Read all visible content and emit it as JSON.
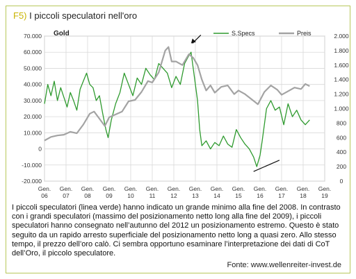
{
  "header": {
    "figure_label": "F5)",
    "title": "I piccoli speculatori nell'oro"
  },
  "colors": {
    "frame": "#b8c85a",
    "green_series": "#2e9a2e",
    "gray_series": "#a3a3a3",
    "arrow": "#111111",
    "figure_label": "#c9b400"
  },
  "chart_data": {
    "type": "line",
    "title": "Gold",
    "x_tick_labels": [
      [
        "Gen.",
        "06"
      ],
      [
        "Gen.",
        "07"
      ],
      [
        "Gen.",
        "08"
      ],
      [
        "Gen.",
        "09"
      ],
      [
        "Gen.",
        "10"
      ],
      [
        "Gen.",
        "11"
      ],
      [
        "Gen.",
        "12"
      ],
      [
        "Gen.",
        "13"
      ],
      [
        "Gen.",
        "14"
      ],
      [
        "Gen.",
        "15"
      ],
      [
        "Gen.",
        "16"
      ],
      [
        "Gen.",
        "17"
      ],
      [
        "Gen.",
        "18"
      ],
      [
        "Gen.",
        "19"
      ]
    ],
    "x_ticks": [
      2006,
      2007,
      2008,
      2009,
      2010,
      2011,
      2012,
      2013,
      2014,
      2015,
      2016,
      2017,
      2018,
      2019
    ],
    "xlim": [
      2006,
      2019
    ],
    "y_left": {
      "lim": [
        -20000,
        70000
      ],
      "ticks": [
        70000,
        60000,
        50000,
        40000,
        30000,
        20000,
        10000,
        0,
        -10000,
        -20000
      ],
      "tick_labels": [
        "70.000",
        "60.000",
        "50.000",
        "40.000",
        "30.000",
        "20.000",
        "10.000",
        "0",
        "-10.000",
        "-20.000"
      ]
    },
    "y_right": {
      "lim": [
        0,
        2000
      ],
      "ticks": [
        2000,
        1800,
        1600,
        1400,
        1200,
        1000,
        800,
        600,
        400,
        200,
        0
      ],
      "tick_labels": [
        "2.000",
        "1.800",
        "1.600",
        "1.400",
        "1.200",
        "1.000",
        "800",
        "600",
        "400",
        "200",
        "0"
      ]
    },
    "grid": true,
    "legend_position": "top-right",
    "series": [
      {
        "name": "S.Specs",
        "axis": "left",
        "color": "#2e9a2e",
        "x": [
          2006.0,
          2006.15,
          2006.3,
          2006.45,
          2006.6,
          2006.75,
          2006.9,
          2007.05,
          2007.2,
          2007.35,
          2007.5,
          2007.65,
          2007.8,
          2007.95,
          2008.1,
          2008.25,
          2008.4,
          2008.55,
          2008.7,
          2008.85,
          2008.95,
          2009.1,
          2009.3,
          2009.5,
          2009.7,
          2009.9,
          2010.1,
          2010.3,
          2010.5,
          2010.7,
          2010.9,
          2011.1,
          2011.3,
          2011.5,
          2011.7,
          2011.9,
          2012.1,
          2012.3,
          2012.5,
          2012.7,
          2012.8,
          2012.9,
          2013.0,
          2013.1,
          2013.2,
          2013.3,
          2013.5,
          2013.7,
          2013.9,
          2014.1,
          2014.3,
          2014.5,
          2014.7,
          2014.9,
          2015.1,
          2015.3,
          2015.5,
          2015.7,
          2015.85,
          2016.0,
          2016.1,
          2016.3,
          2016.5,
          2016.7,
          2016.9,
          2017.1,
          2017.3,
          2017.5,
          2017.7,
          2017.9,
          2018.1,
          2018.3
        ],
        "values": [
          28000,
          40000,
          33000,
          42000,
          30000,
          38000,
          32000,
          26000,
          35000,
          30000,
          24000,
          37000,
          42000,
          47000,
          40000,
          38000,
          30000,
          33000,
          22000,
          12000,
          7000,
          18000,
          28000,
          35000,
          47000,
          40000,
          33000,
          44000,
          40000,
          50000,
          46000,
          43000,
          53000,
          50000,
          47000,
          38000,
          45000,
          40000,
          53000,
          58000,
          60000,
          50000,
          40000,
          30000,
          12000,
          2000,
          5000,
          0,
          4000,
          2000,
          8000,
          3000,
          1000,
          12000,
          7000,
          3000,
          0,
          -5000,
          -11000,
          -4000,
          5000,
          25000,
          30000,
          24000,
          26000,
          15000,
          28000,
          20000,
          24000,
          18000,
          15000,
          18000
        ]
      },
      {
        "name": "Preis",
        "axis": "right",
        "color": "#a3a3a3",
        "x": [
          2006.0,
          2006.3,
          2006.6,
          2006.9,
          2007.2,
          2007.5,
          2007.8,
          2008.1,
          2008.3,
          2008.5,
          2008.8,
          2009.0,
          2009.3,
          2009.6,
          2009.9,
          2010.2,
          2010.5,
          2010.8,
          2011.0,
          2011.3,
          2011.6,
          2011.75,
          2011.9,
          2012.1,
          2012.4,
          2012.7,
          2012.9,
          2013.1,
          2013.3,
          2013.5,
          2013.7,
          2013.9,
          2014.2,
          2014.5,
          2014.8,
          2015.0,
          2015.3,
          2015.6,
          2015.9,
          2016.2,
          2016.5,
          2016.8,
          2017.0,
          2017.3,
          2017.6,
          2017.9,
          2018.1,
          2018.3
        ],
        "values": [
          560,
          610,
          630,
          640,
          680,
          660,
          780,
          930,
          960,
          880,
          760,
          880,
          920,
          960,
          1100,
          1120,
          1230,
          1380,
          1360,
          1500,
          1800,
          1850,
          1650,
          1650,
          1600,
          1750,
          1700,
          1600,
          1400,
          1250,
          1320,
          1220,
          1300,
          1320,
          1200,
          1250,
          1200,
          1130,
          1060,
          1230,
          1320,
          1260,
          1190,
          1240,
          1290,
          1270,
          1340,
          1310
        ]
      }
    ],
    "annotations": [
      {
        "kind": "arrow",
        "at": [
          2012.8,
          1900
        ],
        "label": ""
      },
      {
        "kind": "trend-line",
        "from": [
          2015.7,
          -14000
        ],
        "to": [
          2016.9,
          -7000
        ],
        "label": ""
      }
    ]
  },
  "caption": {
    "text": "I piccoli speculatori (linea verde) hanno indicato un grande minimo alla fine del 2008. In contrasto con i grandi speculatori (massimo del posizionamento netto long alla fine del 2009), i piccoli speculatori hanno consegnato nell’autunno del 2012 un posizionamento estremo. Questo è stato seguito da un rapido arresto superficiale del posizionamento netto long a quasi zero. Allo stesso tempo, il prezzo dell’oro calò. Ci sembra opportuno esaminare l’interpretazione dei dati di CoT dell’Oro, il piccolo speculatore.",
    "source": "Fonte: www.wellenreiter-invest.de"
  }
}
